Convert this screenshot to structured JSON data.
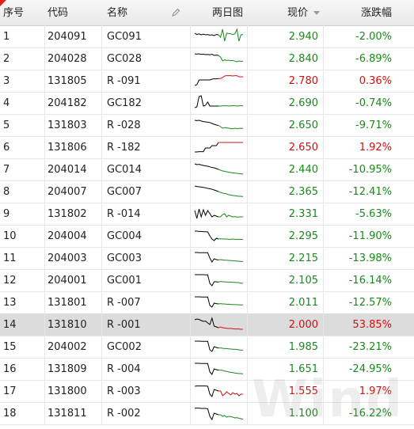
{
  "header": {
    "idx": "序号",
    "code": "代码",
    "name": "名称",
    "spark": "两日图",
    "price": "现价",
    "change": "涨跌幅"
  },
  "colors": {
    "up": "#d01010",
    "down": "#1a8a1a",
    "neutral": "#000000"
  },
  "watermark": "Wind",
  "rows": [
    {
      "idx": "1",
      "code": "204091",
      "name": "GC091",
      "price": "2.940",
      "change": "-2.00%",
      "dir": "down",
      "selected": false,
      "spark": {
        "d1": [
          0.7,
          0.62,
          0.66,
          0.6,
          0.64,
          0.6,
          0.62,
          0.58,
          0.6,
          0.55,
          0.62,
          0.6
        ],
        "d2": [
          0.45,
          0.95,
          0.2,
          0.7,
          0.68,
          0.66,
          0.62,
          0.66,
          0.95,
          0.2,
          0.6,
          0.62
        ]
      }
    },
    {
      "idx": "2",
      "code": "204028",
      "name": "GC028",
      "price": "2.840",
      "change": "-6.89%",
      "dir": "down",
      "selected": false,
      "spark": {
        "d1": [
          0.8,
          0.78,
          0.8,
          0.76,
          0.78,
          0.75,
          0.76,
          0.74,
          0.78,
          0.7,
          0.72,
          0.7
        ],
        "d2": [
          0.6,
          0.35,
          0.42,
          0.38,
          0.4,
          0.36,
          0.38,
          0.34,
          0.3,
          0.35,
          0.32,
          0.34
        ]
      }
    },
    {
      "idx": "3",
      "code": "131805",
      "name": "R -091",
      "price": "2.780",
      "change": "0.36%",
      "dir": "up",
      "selected": false,
      "spark": {
        "d1": [
          0.2,
          0.25,
          0.55,
          0.55,
          0.55,
          0.55,
          0.55,
          0.55,
          0.6,
          0.62,
          0.62,
          0.64
        ],
        "d2": [
          0.64,
          0.7,
          0.8,
          0.82,
          0.82,
          0.82,
          0.8,
          0.82,
          0.82,
          0.75,
          0.75,
          0.75
        ]
      }
    },
    {
      "idx": "4",
      "code": "204182",
      "name": "GC182",
      "price": "2.690",
      "change": "-0.74%",
      "dir": "down",
      "selected": false,
      "spark": {
        "d1": [
          0.2,
          0.25,
          0.9,
          0.95,
          0.3,
          0.35,
          0.55,
          0.3,
          0.3,
          0.3,
          0.3,
          0.3
        ],
        "d2": [
          0.3,
          0.32,
          0.32,
          0.32,
          0.3,
          0.32,
          0.32,
          0.32,
          0.3,
          0.32,
          0.32,
          0.32
        ]
      }
    },
    {
      "idx": "5",
      "code": "131803",
      "name": "R -028",
      "price": "2.650",
      "change": "-9.71%",
      "dir": "down",
      "selected": false,
      "spark": {
        "d1": [
          0.8,
          0.78,
          0.8,
          0.76,
          0.72,
          0.7,
          0.68,
          0.66,
          0.6,
          0.55,
          0.5,
          0.48
        ],
        "d2": [
          0.4,
          0.3,
          0.34,
          0.32,
          0.3,
          0.28,
          0.26,
          0.3,
          0.28,
          0.28,
          0.3,
          0.28
        ]
      }
    },
    {
      "idx": "6",
      "code": "131806",
      "name": "R -182",
      "price": "2.650",
      "change": "1.92%",
      "dir": "up",
      "selected": false,
      "spark": {
        "d1": [
          0.2,
          0.2,
          0.22,
          0.22,
          0.22,
          0.45,
          0.45,
          0.45,
          0.6,
          0.6,
          0.6,
          0.8
        ],
        "d2": [
          0.8,
          0.8,
          0.8,
          0.8,
          0.8,
          0.8,
          0.8,
          0.8,
          0.8,
          0.8,
          0.8,
          0.8
        ]
      }
    },
    {
      "idx": "7",
      "code": "204014",
      "name": "GC014",
      "price": "2.440",
      "change": "-10.95%",
      "dir": "down",
      "selected": false,
      "spark": {
        "d1": [
          0.85,
          0.8,
          0.82,
          0.78,
          0.75,
          0.72,
          0.7,
          0.66,
          0.62,
          0.6,
          0.55,
          0.5
        ],
        "d2": [
          0.45,
          0.4,
          0.38,
          0.35,
          0.32,
          0.3,
          0.28,
          0.26,
          0.25,
          0.24,
          0.22,
          0.2
        ]
      }
    },
    {
      "idx": "8",
      "code": "204007",
      "name": "GC007",
      "price": "2.365",
      "change": "-12.41%",
      "dir": "down",
      "selected": false,
      "spark": {
        "d1": [
          0.85,
          0.82,
          0.8,
          0.78,
          0.76,
          0.74,
          0.7,
          0.68,
          0.64,
          0.6,
          0.55,
          0.5
        ],
        "d2": [
          0.45,
          0.4,
          0.38,
          0.35,
          0.3,
          0.28,
          0.25,
          0.24,
          0.22,
          0.2,
          0.2,
          0.18
        ]
      }
    },
    {
      "idx": "9",
      "code": "131802",
      "name": "R -014",
      "price": "2.331",
      "change": "-5.63%",
      "dir": "down",
      "selected": false,
      "spark": {
        "d1": [
          0.7,
          0.2,
          0.8,
          0.3,
          0.75,
          0.4,
          0.7,
          0.5,
          0.3,
          0.4,
          0.35,
          0.3
        ],
        "d2": [
          0.3,
          0.45,
          0.5,
          0.3,
          0.4,
          0.35,
          0.3,
          0.32,
          0.28,
          0.3,
          0.3,
          0.3
        ]
      }
    },
    {
      "idx": "10",
      "code": "204004",
      "name": "GC004",
      "price": "2.295",
      "change": "-11.90%",
      "dir": "down",
      "selected": false,
      "spark": {
        "d1": [
          0.8,
          0.8,
          0.78,
          0.78,
          0.76,
          0.76,
          0.75,
          0.5,
          0.3,
          0.2,
          0.35,
          0.3
        ],
        "d2": [
          0.32,
          0.3,
          0.3,
          0.3,
          0.28,
          0.28,
          0.3,
          0.28,
          0.28,
          0.28,
          0.28,
          0.28
        ]
      }
    },
    {
      "idx": "11",
      "code": "204003",
      "name": "GC003",
      "price": "2.215",
      "change": "-13.98%",
      "dir": "down",
      "selected": false,
      "spark": {
        "d1": [
          0.85,
          0.85,
          0.84,
          0.84,
          0.84,
          0.84,
          0.84,
          0.5,
          0.25,
          0.45,
          0.4,
          0.38
        ],
        "d2": [
          0.4,
          0.38,
          0.36,
          0.36,
          0.35,
          0.34,
          0.33,
          0.32,
          0.3,
          0.3,
          0.28,
          0.28
        ]
      }
    },
    {
      "idx": "12",
      "code": "204001",
      "name": "GC001",
      "price": "2.105",
      "change": "-16.14%",
      "dir": "down",
      "selected": false,
      "spark": {
        "d1": [
          0.85,
          0.85,
          0.85,
          0.85,
          0.85,
          0.84,
          0.84,
          0.3,
          0.15,
          0.4,
          0.4,
          0.38
        ],
        "d2": [
          0.42,
          0.4,
          0.4,
          0.38,
          0.38,
          0.38,
          0.36,
          0.36,
          0.35,
          0.35,
          0.3,
          0.32
        ]
      }
    },
    {
      "idx": "13",
      "code": "131801",
      "name": "R -007",
      "price": "2.011",
      "change": "-12.57%",
      "dir": "down",
      "selected": false,
      "spark": {
        "d1": [
          0.85,
          0.85,
          0.85,
          0.84,
          0.84,
          0.84,
          0.84,
          0.3,
          0.2,
          0.45,
          0.42,
          0.4
        ],
        "d2": [
          0.42,
          0.4,
          0.4,
          0.38,
          0.38,
          0.37,
          0.36,
          0.36,
          0.35,
          0.35,
          0.34,
          0.34
        ]
      }
    },
    {
      "idx": "14",
      "code": "131810",
      "name": "R -001",
      "price": "2.000",
      "change": "53.85%",
      "dir": "up",
      "selected": true,
      "spark": {
        "d1": [
          0.8,
          0.85,
          0.82,
          0.75,
          0.7,
          0.72,
          0.6,
          0.5,
          0.9,
          0.4,
          0.35,
          0.3
        ],
        "d2": [
          0.35,
          0.3,
          0.28,
          0.26,
          0.25,
          0.25,
          0.24,
          0.22,
          0.22,
          0.22,
          0.2,
          0.2
        ]
      }
    },
    {
      "idx": "15",
      "code": "204002",
      "name": "GC002",
      "price": "1.985",
      "change": "-23.21%",
      "dir": "down",
      "selected": false,
      "spark": {
        "d1": [
          0.85,
          0.85,
          0.85,
          0.84,
          0.84,
          0.84,
          0.84,
          0.3,
          0.2,
          0.5,
          0.45,
          0.42
        ],
        "d2": [
          0.42,
          0.4,
          0.38,
          0.38,
          0.36,
          0.35,
          0.34,
          0.34,
          0.32,
          0.3,
          0.28,
          0.28
        ]
      }
    },
    {
      "idx": "16",
      "code": "131809",
      "name": "R -004",
      "price": "1.651",
      "change": "-24.95%",
      "dir": "down",
      "selected": false,
      "spark": {
        "d1": [
          0.85,
          0.85,
          0.85,
          0.84,
          0.84,
          0.84,
          0.84,
          0.3,
          0.15,
          0.5,
          0.45,
          0.42
        ],
        "d2": [
          0.42,
          0.4,
          0.36,
          0.34,
          0.3,
          0.28,
          0.26,
          0.24,
          0.22,
          0.2,
          0.2,
          0.18
        ]
      }
    },
    {
      "idx": "17",
      "code": "131800",
      "name": "R -003",
      "price": "1.555",
      "change": "1.97%",
      "dir": "up",
      "selected": false,
      "spark": {
        "d1": [
          0.8,
          0.82,
          0.82,
          0.82,
          0.82,
          0.82,
          0.8,
          0.3,
          0.15,
          0.6,
          0.55,
          0.5
        ],
        "d2": [
          0.5,
          0.2,
          0.3,
          0.45,
          0.35,
          0.25,
          0.4,
          0.3,
          0.35,
          0.2,
          0.3,
          0.3
        ]
      }
    },
    {
      "idx": "18",
      "code": "131811",
      "name": "R -002",
      "price": "1.100",
      "change": "-16.22%",
      "dir": "down",
      "selected": false,
      "spark": {
        "d1": [
          0.82,
          0.82,
          0.82,
          0.8,
          0.8,
          0.8,
          0.78,
          0.3,
          0.1,
          0.5,
          0.45,
          0.4
        ],
        "d2": [
          0.4,
          0.3,
          0.35,
          0.25,
          0.3,
          0.28,
          0.25,
          0.2,
          0.22,
          0.18,
          0.15,
          0.12
        ]
      }
    }
  ]
}
